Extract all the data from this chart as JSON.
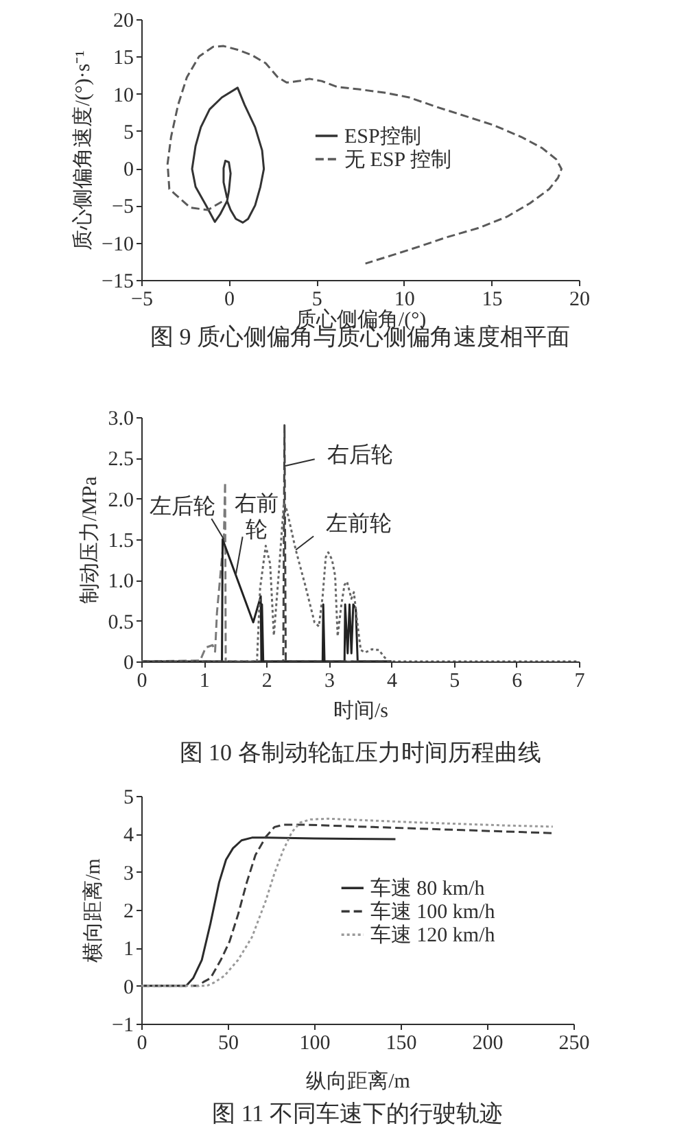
{
  "chart_data": [
    {
      "type": "line",
      "title": "图 9  质心侧偏角与质心侧偏角速度相平面",
      "xlabel": "质心侧偏角/(°)",
      "ylabel": "质心侧偏角速度/(°)·s⁻¹",
      "xlim": [
        -5,
        20
      ],
      "xticks": [
        -5,
        0,
        5,
        10,
        15,
        20
      ],
      "ylim": [
        -15,
        20
      ],
      "yticks": [
        -15,
        -10,
        -5,
        0,
        5,
        10,
        15,
        20
      ],
      "legend": "right",
      "series": [
        {
          "name": "ESP控制",
          "color": "#333333",
          "line_style": "solid",
          "x": [
            -0.1,
            -0.3,
            -0.3,
            -0.2,
            0.0,
            0.1,
            0.0,
            -0.1,
            -0.5,
            -0.8,
            -1.3,
            -1.9,
            -2.1,
            -1.9,
            -1.6,
            -1.1,
            -0.4,
            0.5,
            0.9,
            1.5,
            1.9,
            2.0,
            1.8,
            1.5,
            1.1,
            0.8,
            0.4,
            0.1,
            -0.1
          ],
          "values": [
            -4.0,
            -1.9,
            0.0,
            1.0,
            0.8,
            -0.7,
            -3.1,
            -4.4,
            -6.2,
            -7.2,
            -5.0,
            -2.5,
            -0.1,
            3.0,
            5.5,
            7.9,
            9.5,
            10.8,
            8.5,
            5.5,
            2.4,
            -0.1,
            -2.5,
            -5.0,
            -6.8,
            -7.3,
            -6.8,
            -5.6,
            -4.4
          ]
        },
        {
          "name": "无 ESP 控制",
          "color": "#5a5a5a",
          "line_style": "dashed",
          "x": [
            -0.4,
            -1.2,
            -2.2,
            -3.4,
            -3.5,
            -3.3,
            -2.9,
            -2.4,
            -1.7,
            -0.9,
            -0.3,
            0.5,
            1.3,
            2.1,
            2.8,
            3.3,
            4.0,
            4.6,
            5.3,
            6.2,
            7.4,
            9.0,
            10.3,
            11.9,
            13.5,
            15.1,
            16.7,
            17.9,
            18.7,
            19.0,
            18.8,
            18.3,
            17.2,
            15.9,
            14.3,
            12.4,
            10.9,
            9.3,
            7.8
          ],
          "values": [
            -4.5,
            -5.6,
            -5.3,
            -2.8,
            0.6,
            4.2,
            8.5,
            12.2,
            15.0,
            16.3,
            16.4,
            15.9,
            15.2,
            14.1,
            12.2,
            11.5,
            11.7,
            12.0,
            11.7,
            10.9,
            10.6,
            10.1,
            9.5,
            8.2,
            7.0,
            5.8,
            4.2,
            2.7,
            1.2,
            -0.1,
            -1.3,
            -2.8,
            -4.7,
            -6.5,
            -8.0,
            -9.3,
            -10.5,
            -11.7,
            -12.8
          ]
        }
      ]
    },
    {
      "type": "line",
      "title": "图 10  各制动轮缸压力时间历程曲线",
      "xlabel": "时间/s",
      "ylabel": "制动压力/MPa",
      "xlim": [
        0,
        7
      ],
      "xticks": [
        0,
        1,
        2,
        3,
        4,
        5,
        6,
        7
      ],
      "ylim": [
        0,
        3
      ],
      "yticks": [
        0,
        0.5,
        {
          "value": 1,
          "label": "1.0"
        },
        1.5,
        {
          "value": 2,
          "label": "2.0"
        },
        2.5,
        {
          "value": 3,
          "label": "3.0"
        }
      ],
      "annotations": [
        {
          "text": "左后轮",
          "x": 1.32,
          "y": 1.5
        },
        {
          "text": "右前轮",
          "x": 1.51,
          "y": 1.06
        },
        {
          "text": "右后轮",
          "x": 2.29,
          "y": 2.4
        },
        {
          "text": "左前轮",
          "x": 2.47,
          "y": 1.37
        }
      ],
      "series": [
        {
          "color": "#7a7a7a",
          "line_style": "dashed",
          "x": [
            0,
            0.94,
            1.03,
            1.14,
            1.18,
            1.21,
            1.29,
            1.32,
            1.34,
            1.35,
            4.0
          ],
          "values": [
            0,
            0.01,
            0.17,
            0.2,
            0.12,
            0.6,
            1.28,
            1.5,
            2.2,
            0,
            0
          ]
        },
        {
          "color": "#222222",
          "line_style": "solid",
          "x": [
            0,
            1.29,
            1.3,
            1.79,
            1.91,
            1.92,
            1.93,
            1.95,
            2.9,
            2.91,
            2.93,
            3.25,
            3.26,
            3.3,
            3.33,
            3.36,
            3.39,
            3.43,
            3.46,
            4.0
          ],
          "values": [
            0,
            0,
            1.5,
            0.48,
            0.8,
            0,
            0.7,
            0,
            0,
            0.7,
            0,
            0,
            0.7,
            0.1,
            0.7,
            0.1,
            0.7,
            0.65,
            0,
            0
          ]
        },
        {
          "color": "#444444",
          "line_style": "dashed",
          "x": [
            0,
            2.27,
            2.29,
            2.31,
            4.0
          ],
          "values": [
            0,
            0,
            2.9,
            0,
            0
          ]
        },
        {
          "color": "#666666",
          "line_style": "dotted",
          "x": [
            0,
            1.85,
            1.9,
            1.99,
            2.06,
            2.12,
            2.2,
            2.28,
            2.33,
            2.47,
            2.62,
            2.77,
            2.84,
            2.9,
            2.95,
            2.99,
            3.05,
            3.1,
            3.14,
            3.2,
            3.25,
            3.29,
            3.36,
            3.4,
            3.45,
            3.51,
            3.58,
            3.69,
            3.8,
            3.88,
            3.95,
            7.0
          ],
          "values": [
            0,
            0,
            0.9,
            1.42,
            1.2,
            0.32,
            1.1,
            1.95,
            1.85,
            1.37,
            0.94,
            0.48,
            0.43,
            0.8,
            1.28,
            1.34,
            1.25,
            1.05,
            0.31,
            0.7,
            0.94,
            0.98,
            0.77,
            0.85,
            0.5,
            0.14,
            0.11,
            0.15,
            0.14,
            0.06,
            0,
            0
          ]
        }
      ]
    },
    {
      "type": "line",
      "title": "图 11  不同车速下的行驶轨迹",
      "xlabel": "纵向距离/m",
      "ylabel": "横向距离/m",
      "xlim": [
        0,
        250
      ],
      "xticks": [
        0,
        50,
        100,
        150,
        200,
        250
      ],
      "ylim": [
        -1,
        5
      ],
      "yticks": [
        -1,
        0,
        1,
        2,
        3,
        4,
        5
      ],
      "legend": "right",
      "series": [
        {
          "name": "车速 80 km/h",
          "color": "#2b2b2b",
          "line_style": "solid",
          "x": [
            0,
            26,
            30,
            35,
            40,
            45,
            49,
            53,
            58,
            64,
            72,
            100,
            147
          ],
          "values": [
            0,
            0,
            0.2,
            0.68,
            1.64,
            2.72,
            3.32,
            3.62,
            3.83,
            3.9,
            3.9,
            3.88,
            3.86
          ]
        },
        {
          "name": "车速 100 km/h",
          "color": "#3a3a3a",
          "line_style": "dashed",
          "x": [
            0,
            33,
            36,
            40,
            46,
            51,
            56,
            61,
            66,
            72,
            77,
            82,
            95,
            134,
            186,
            238
          ],
          "values": [
            0,
            0,
            0.1,
            0.2,
            0.68,
            1.16,
            1.88,
            2.72,
            3.44,
            3.92,
            4.18,
            4.24,
            4.24,
            4.18,
            4.1,
            4.02
          ]
        },
        {
          "name": "车速 120 km/h",
          "color": "#9a9a9a",
          "line_style": "dotted",
          "x": [
            0,
            38,
            42,
            48,
            56,
            64,
            72,
            77,
            82,
            87,
            92,
            98,
            108,
            160,
            212,
            238
          ],
          "values": [
            0,
            0,
            0.08,
            0.26,
            0.68,
            1.28,
            2.24,
            2.96,
            3.56,
            4.04,
            4.3,
            4.38,
            4.4,
            4.3,
            4.22,
            4.19
          ]
        }
      ]
    }
  ]
}
